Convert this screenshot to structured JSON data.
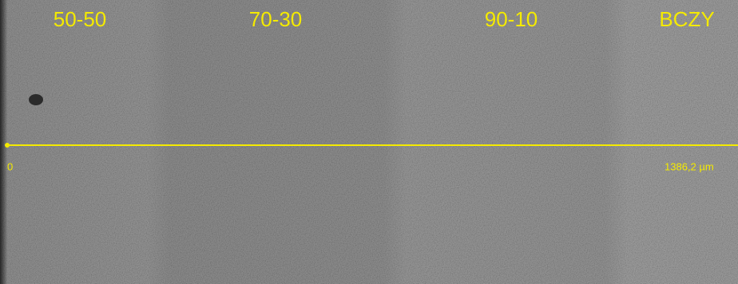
{
  "image": {
    "region_labels": [
      "50-50",
      "70-30",
      "90-10",
      "BCZY"
    ],
    "scale_bar": {
      "start_label": "0",
      "end_label": "1386,2 µm"
    }
  }
}
